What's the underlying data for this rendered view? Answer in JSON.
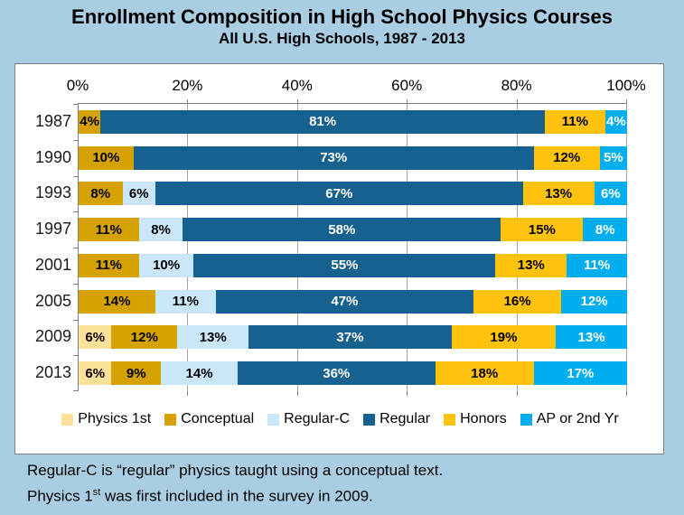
{
  "header": {
    "title": "Enrollment Composition in High School Physics Courses",
    "subtitle": "All U.S. High Schools, 1987 - 2013"
  },
  "chart_data": {
    "type": "bar",
    "orientation": "horizontal",
    "stacked": true,
    "unit": "percent",
    "title": "Enrollment Composition in High School Physics Courses",
    "subtitle": "All U.S. High Schools, 1987 - 2013",
    "categories": [
      "1987",
      "1990",
      "1993",
      "1997",
      "2001",
      "2005",
      "2009",
      "2013"
    ],
    "x_axis": {
      "position": "top",
      "min": 0,
      "max": 100,
      "ticks": [
        "0%",
        "20%",
        "40%",
        "60%",
        "80%",
        "100%"
      ],
      "tick_values": [
        0,
        20,
        40,
        60,
        80,
        100
      ]
    },
    "grid": true,
    "legend_position": "bottom",
    "series": [
      {
        "name": "Physics 1st",
        "color": "#FCE199",
        "label_color": "#000000",
        "values": [
          0,
          0,
          0,
          0,
          0,
          0,
          6,
          6
        ]
      },
      {
        "name": "Conceptual",
        "color": "#D6A200",
        "label_color": "#000000",
        "values": [
          4,
          10,
          8,
          11,
          11,
          14,
          12,
          9
        ]
      },
      {
        "name": "Regular-C",
        "color": "#C9E7F8",
        "label_color": "#000000",
        "values": [
          0,
          0,
          6,
          8,
          10,
          11,
          13,
          14
        ]
      },
      {
        "name": "Regular",
        "color": "#16618F",
        "label_color": "#FFFFFF",
        "values": [
          81,
          73,
          67,
          58,
          55,
          47,
          37,
          36
        ]
      },
      {
        "name": "Honors",
        "color": "#FFC20D",
        "label_color": "#000000",
        "values": [
          11,
          12,
          13,
          15,
          13,
          16,
          19,
          18
        ]
      },
      {
        "name": "AP or 2nd Yr",
        "color": "#00AEEF",
        "label_color": "#FFFFFF",
        "values": [
          4,
          5,
          6,
          8,
          11,
          12,
          13,
          17
        ]
      }
    ]
  },
  "footnotes": {
    "line1": "Regular-C is “regular” physics taught using a conceptual text.",
    "line2_prefix": "Physics 1",
    "line2_sup": "st",
    "line2_rest": " was first included in the survey in 2009."
  },
  "colors": {
    "page_bg": "#A9CEE3",
    "panel_bg": "#FFFFFF",
    "panel_border": "#7F7F7F",
    "gridline": "#A6A6A6",
    "axis_line": "#7F7F7F"
  }
}
